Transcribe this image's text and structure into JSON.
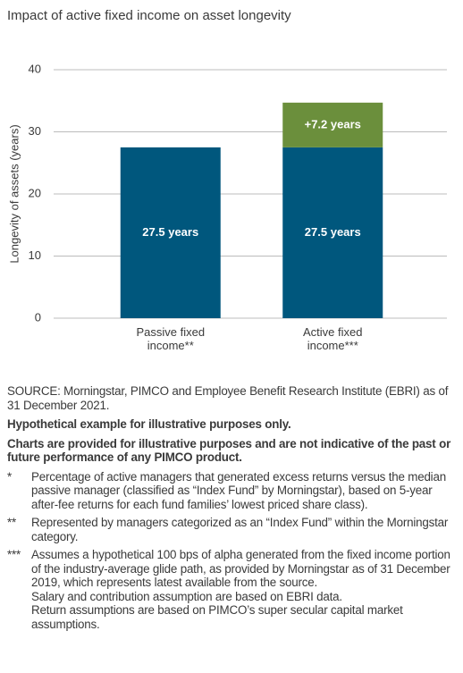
{
  "chart_data": {
    "type": "stacked-bar",
    "title": "Impact of active fixed income on asset longevity",
    "y_label": "Longevity of assets (years)",
    "categories": [
      "Passive fixed income**",
      "Active fixed income***"
    ],
    "series": [
      {
        "color": "#00577d",
        "values": [
          27.5,
          27.5
        ],
        "value_labels": [
          "27.5 years",
          "27.5 years"
        ]
      },
      {
        "color": "#6b8f3c",
        "values": [
          null,
          7.2
        ],
        "value_labels": [
          null,
          "+7.2 years"
        ]
      }
    ],
    "ylim": [
      0,
      40
    ],
    "yticks": [
      0,
      10,
      20,
      30,
      40
    ],
    "grid": true
  },
  "notes": {
    "source": "SOURCE: Morningstar, PIMCO and Employee Benefit Research Institute (EBRI) as of 31 December 2021.",
    "disclaimers": [
      "Hypothetical example for illustrative purposes only.",
      "Charts are provided for illustrative purposes and are not indicative of the past or future performance of any PIMCO product."
    ],
    "footnotes": [
      {
        "marker": "*",
        "paragraphs": [
          "Percentage of active managers that generated excess returns versus the median passive manager (classified as “Index Fund” by Morningstar), based on 5-year after-fee returns for each fund families’ lowest priced share class)."
        ]
      },
      {
        "marker": "**",
        "paragraphs": [
          "Represented by managers categorized as an “Index Fund” within the Morningstar category."
        ]
      },
      {
        "marker": "***",
        "paragraphs": [
          "Assumes a hypothetical 100 bps of alpha generated from the fixed income portion of the industry-average glide path, as provided by Morningstar as of 31 December 2019, which represents latest available from the source.",
          "Salary and contribution assumption are based on EBRI data.",
          "Return assumptions are based on PIMCO’s super secular capital market assumptions."
        ]
      }
    ]
  }
}
